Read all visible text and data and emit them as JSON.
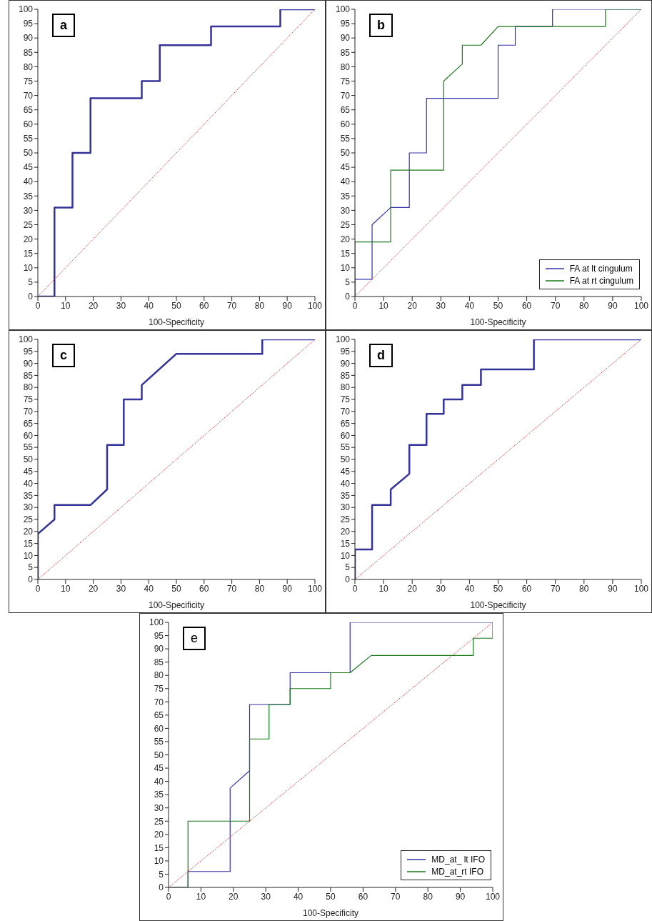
{
  "chart_data": [
    {
      "type": "line",
      "annotations": [
        "a"
      ],
      "xlabel": "100-Specificity",
      "xlim": [
        0,
        100
      ],
      "xticks": [
        0,
        10,
        20,
        30,
        40,
        50,
        60,
        70,
        80,
        90,
        100
      ],
      "ylim": [
        0,
        100
      ],
      "yticks": [
        0,
        5,
        10,
        15,
        20,
        25,
        30,
        35,
        40,
        45,
        50,
        55,
        60,
        65,
        70,
        75,
        80,
        85,
        90,
        95,
        100
      ],
      "grid": false,
      "legend": false,
      "series": [
        {
          "color": "#333399",
          "x": [
            0,
            6,
            6,
            12.5,
            12.5,
            19,
            19,
            37.5,
            37.5,
            44,
            44,
            62.5,
            62.5,
            87.5,
            87.5,
            100
          ],
          "values": [
            0,
            0,
            31,
            31,
            50,
            50,
            69,
            69,
            75,
            75,
            87.5,
            87.5,
            94,
            94,
            100,
            100
          ]
        },
        {
          "color": "#cc3333",
          "line_style": "dotted",
          "x": [
            0,
            100
          ],
          "values": [
            0,
            100
          ]
        }
      ]
    },
    {
      "type": "line",
      "annotations": [
        "b"
      ],
      "xlabel": "100-Specificity",
      "xlim": [
        0,
        100
      ],
      "xticks": [
        0,
        10,
        20,
        30,
        40,
        50,
        60,
        70,
        80,
        90,
        100
      ],
      "ylim": [
        0,
        100
      ],
      "yticks": [
        0,
        5,
        10,
        15,
        20,
        25,
        30,
        35,
        40,
        45,
        50,
        55,
        60,
        65,
        70,
        75,
        80,
        85,
        90,
        95,
        100
      ],
      "grid": false,
      "legend": "bottom right",
      "series": [
        {
          "name": "FA at lt cingulum",
          "color": "#3333aa",
          "x": [
            0,
            0,
            6,
            6,
            12.5,
            19,
            19,
            25,
            25,
            50,
            50,
            56,
            56,
            69,
            69,
            100
          ],
          "values": [
            0,
            6,
            6,
            25,
            31,
            31,
            50,
            50,
            69,
            69,
            87.5,
            87.5,
            94,
            94,
            100,
            100
          ]
        },
        {
          "name": "FA at rt cingulum",
          "color": "#1a7a1a",
          "x": [
            0,
            0,
            12.5,
            12.5,
            31,
            31,
            37.5,
            37.5,
            44,
            50,
            87.5,
            87.5,
            100
          ],
          "values": [
            0,
            19,
            19,
            44,
            44,
            75,
            81,
            87.5,
            87.5,
            94,
            94,
            100,
            100
          ]
        },
        {
          "color": "#cc3333",
          "line_style": "dotted",
          "x": [
            0,
            100
          ],
          "values": [
            0,
            100
          ]
        }
      ]
    },
    {
      "type": "line",
      "annotations": [
        "c"
      ],
      "xlabel": "100-Specificity",
      "xlim": [
        0,
        100
      ],
      "xticks": [
        0,
        10,
        20,
        30,
        40,
        50,
        60,
        70,
        80,
        90,
        100
      ],
      "ylim": [
        0,
        100
      ],
      "yticks": [
        0,
        5,
        10,
        15,
        20,
        25,
        30,
        35,
        40,
        45,
        50,
        55,
        60,
        65,
        70,
        75,
        80,
        85,
        90,
        95,
        100
      ],
      "grid": false,
      "legend": false,
      "series": [
        {
          "color": "#333399",
          "x": [
            0,
            0,
            6,
            6,
            19,
            25,
            25,
            31,
            31,
            37.5,
            37.5,
            50,
            81,
            81,
            100
          ],
          "values": [
            0,
            19,
            25,
            31,
            31,
            37.5,
            56,
            56,
            75,
            75,
            81,
            94,
            94,
            100,
            100
          ]
        },
        {
          "color": "#cc3333",
          "line_style": "dotted",
          "x": [
            0,
            100
          ],
          "values": [
            0,
            100
          ]
        }
      ]
    },
    {
      "type": "line",
      "annotations": [
        "d"
      ],
      "xlabel": "100-Specificity",
      "xlim": [
        0,
        100
      ],
      "xticks": [
        0,
        10,
        20,
        30,
        40,
        50,
        60,
        70,
        80,
        90,
        100
      ],
      "ylim": [
        0,
        100
      ],
      "yticks": [
        0,
        5,
        10,
        15,
        20,
        25,
        30,
        35,
        40,
        45,
        50,
        55,
        60,
        65,
        70,
        75,
        80,
        85,
        90,
        95,
        100
      ],
      "grid": false,
      "legend": false,
      "series": [
        {
          "color": "#333399",
          "x": [
            0,
            0,
            6,
            6,
            12.5,
            12.5,
            19,
            19,
            25,
            25,
            31,
            31,
            37.5,
            37.5,
            44,
            44,
            62.5,
            62.5,
            100
          ],
          "values": [
            0,
            12.5,
            12.5,
            31,
            31,
            37.5,
            44,
            56,
            56,
            69,
            69,
            75,
            75,
            81,
            81,
            87.5,
            87.5,
            100,
            100
          ]
        },
        {
          "color": "#cc3333",
          "line_style": "dotted",
          "x": [
            0,
            100
          ],
          "values": [
            0,
            100
          ]
        }
      ]
    },
    {
      "type": "line",
      "annotations": [
        "e"
      ],
      "xlabel": "100-Specificity",
      "xlim": [
        0,
        100
      ],
      "xticks": [
        0,
        10,
        20,
        30,
        40,
        50,
        60,
        70,
        80,
        90,
        100
      ],
      "ylim": [
        0,
        100
      ],
      "yticks": [
        0,
        5,
        10,
        15,
        20,
        25,
        30,
        35,
        40,
        45,
        50,
        55,
        60,
        65,
        70,
        75,
        80,
        85,
        90,
        95,
        100
      ],
      "grid": false,
      "legend": "bottom right",
      "series": [
        {
          "name": "MD_at_ lt IFO",
          "color": "#3333aa",
          "x": [
            0,
            6,
            6,
            19,
            19,
            25,
            25,
            37.5,
            37.5,
            56,
            56,
            100
          ],
          "values": [
            0,
            0,
            6,
            6,
            37.5,
            44,
            69,
            69,
            81,
            81,
            100,
            100
          ]
        },
        {
          "name": "MD_at_rt IFO",
          "color": "#1a7a1a",
          "x": [
            0,
            6,
            6,
            25,
            25,
            31,
            31,
            37.5,
            37.5,
            50,
            50,
            56,
            62.5,
            94,
            94,
            100,
            100
          ],
          "values": [
            0,
            0,
            25,
            25,
            56,
            56,
            69,
            69,
            75,
            75,
            81,
            81,
            87.5,
            87.5,
            94,
            94,
            100
          ]
        },
        {
          "color": "#cc3333",
          "line_style": "dotted",
          "x": [
            0,
            100
          ],
          "values": [
            0,
            100
          ]
        }
      ]
    }
  ]
}
